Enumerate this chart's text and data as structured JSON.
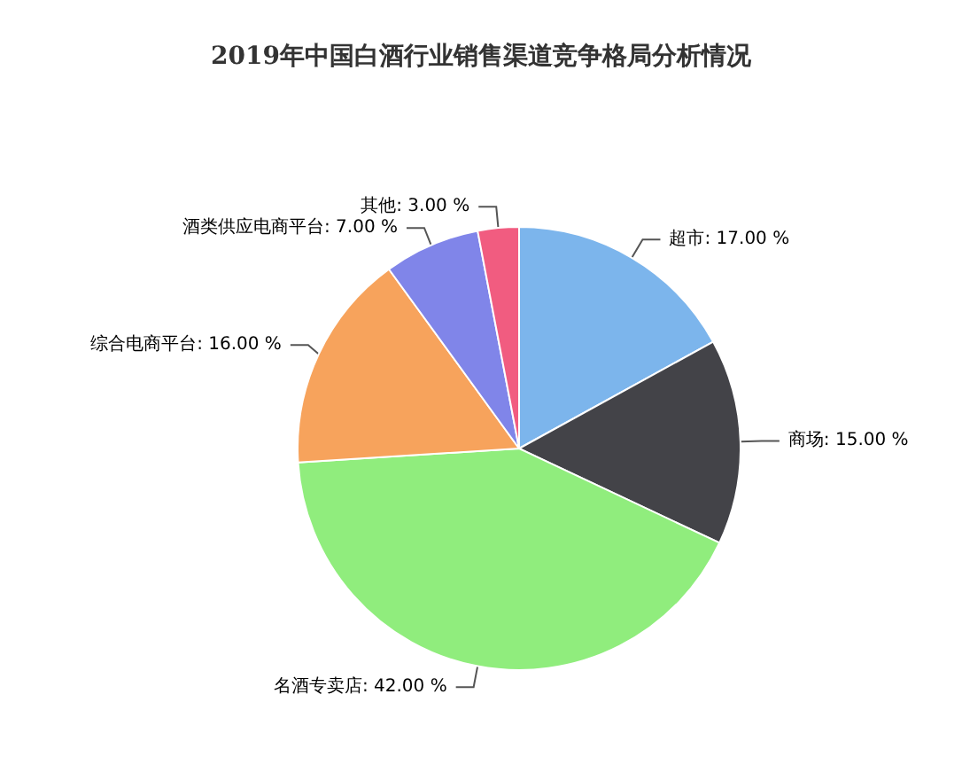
{
  "chart_data": {
    "type": "pie",
    "title": "2019年中国白酒行业销售渠道竞争格局分析情况",
    "categories": [
      "超市",
      "商场",
      "名酒专卖店",
      "综合电商平台",
      "酒类供应电商平台",
      "其他"
    ],
    "values": [
      17,
      15,
      42,
      16,
      7,
      3
    ],
    "colors": [
      "#7cb5ec",
      "#434348",
      "#90ed7d",
      "#f7a35c",
      "#8085e9",
      "#f15c80"
    ],
    "value_labels": [
      "17.00 %",
      "15.00 %",
      "42.00 %",
      "16.00 %",
      "7.00 %",
      "3.00 %"
    ],
    "legend": false
  }
}
